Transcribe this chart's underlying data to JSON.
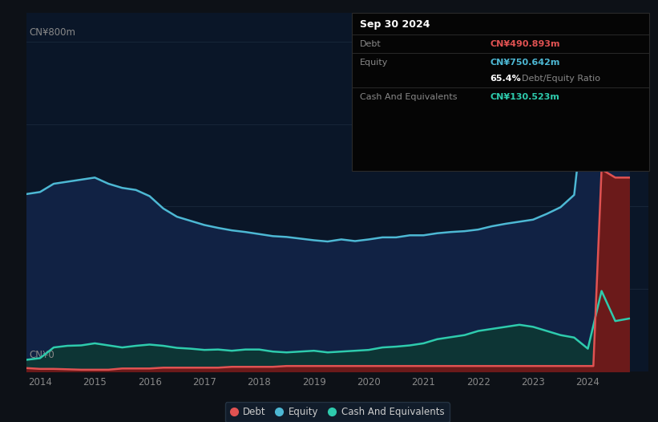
{
  "bg_color": "#0d1117",
  "plot_bg_color": "#0a1628",
  "grid_color": "#1e2d40",
  "title_date": "Sep 30 2024",
  "debt_label": "Debt",
  "equity_label": "Equity",
  "cash_label": "Cash And Equivalents",
  "debt_value": "CN¥490.893m",
  "equity_value": "CN¥750.642m",
  "de_ratio": "65.4%",
  "de_ratio_text": "Debt/Equity Ratio",
  "cash_value": "CN¥130.523m",
  "debt_color": "#e05252",
  "equity_color": "#4db8d4",
  "equity_fill_color": "#112244",
  "cash_color": "#2ecbad",
  "cash_fill_color": "#0d3535",
  "debt_fill_color": "#6b1a1a",
  "ylabel_top": "CN¥800m",
  "ylabel_bottom": "CN¥0",
  "x_ticks": [
    "2014",
    "2015",
    "2016",
    "2017",
    "2018",
    "2019",
    "2020",
    "2021",
    "2022",
    "2023",
    "2024"
  ],
  "legend_labels": [
    "Debt",
    "Equity",
    "Cash And Equivalents"
  ],
  "legend_colors": [
    "#e05252",
    "#4db8d4",
    "#2ecbad"
  ],
  "equity_data": {
    "years": [
      2013.75,
      2014.0,
      2014.25,
      2014.5,
      2014.75,
      2015.0,
      2015.25,
      2015.5,
      2015.75,
      2016.0,
      2016.25,
      2016.5,
      2016.75,
      2017.0,
      2017.25,
      2017.5,
      2017.75,
      2018.0,
      2018.25,
      2018.5,
      2018.75,
      2019.0,
      2019.25,
      2019.5,
      2019.75,
      2020.0,
      2020.25,
      2020.5,
      2020.75,
      2021.0,
      2021.25,
      2021.5,
      2021.75,
      2022.0,
      2022.25,
      2022.5,
      2022.75,
      2023.0,
      2023.25,
      2023.5,
      2023.75,
      2024.0,
      2024.25,
      2024.5,
      2024.75
    ],
    "values": [
      430,
      435,
      455,
      460,
      465,
      470,
      455,
      445,
      440,
      425,
      395,
      375,
      365,
      355,
      348,
      342,
      338,
      333,
      328,
      326,
      322,
      318,
      315,
      320,
      316,
      320,
      325,
      325,
      330,
      330,
      335,
      338,
      340,
      344,
      352,
      358,
      363,
      368,
      382,
      398,
      428,
      728,
      782,
      762,
      762
    ]
  },
  "debt_data": {
    "years": [
      2013.75,
      2014.0,
      2014.25,
      2014.5,
      2014.75,
      2015.0,
      2015.25,
      2015.5,
      2015.75,
      2016.0,
      2016.25,
      2016.5,
      2016.75,
      2017.0,
      2017.25,
      2017.5,
      2017.75,
      2018.0,
      2018.25,
      2018.5,
      2018.75,
      2019.0,
      2019.25,
      2019.5,
      2019.75,
      2020.0,
      2020.25,
      2020.5,
      2020.75,
      2021.0,
      2021.25,
      2021.5,
      2021.75,
      2022.0,
      2022.25,
      2022.5,
      2022.75,
      2023.0,
      2023.25,
      2023.5,
      2023.75,
      2024.0,
      2024.1,
      2024.25,
      2024.5,
      2024.75
    ],
    "values": [
      8,
      6,
      6,
      5,
      4,
      4,
      4,
      7,
      7,
      7,
      9,
      9,
      9,
      9,
      9,
      11,
      11,
      11,
      11,
      13,
      13,
      13,
      13,
      13,
      13,
      13,
      13,
      13,
      13,
      13,
      13,
      13,
      13,
      13,
      13,
      13,
      13,
      13,
      13,
      13,
      13,
      13,
      13,
      490,
      470,
      470
    ]
  },
  "cash_data": {
    "years": [
      2013.75,
      2014.0,
      2014.25,
      2014.5,
      2014.75,
      2015.0,
      2015.25,
      2015.5,
      2015.75,
      2016.0,
      2016.25,
      2016.5,
      2016.75,
      2017.0,
      2017.25,
      2017.5,
      2017.75,
      2018.0,
      2018.25,
      2018.5,
      2018.75,
      2019.0,
      2019.25,
      2019.5,
      2019.75,
      2020.0,
      2020.25,
      2020.5,
      2020.75,
      2021.0,
      2021.25,
      2021.5,
      2021.75,
      2022.0,
      2022.25,
      2022.5,
      2022.75,
      2023.0,
      2023.25,
      2023.5,
      2023.75,
      2024.0,
      2024.25,
      2024.5,
      2024.75
    ],
    "values": [
      28,
      32,
      58,
      62,
      63,
      68,
      63,
      58,
      62,
      65,
      62,
      57,
      55,
      52,
      53,
      50,
      53,
      53,
      48,
      46,
      48,
      50,
      46,
      48,
      50,
      52,
      58,
      60,
      63,
      68,
      78,
      83,
      88,
      98,
      103,
      108,
      113,
      108,
      98,
      88,
      82,
      55,
      195,
      122,
      128
    ]
  },
  "ylim": [
    0,
    870
  ],
  "xlim": [
    2013.75,
    2025.1
  ]
}
